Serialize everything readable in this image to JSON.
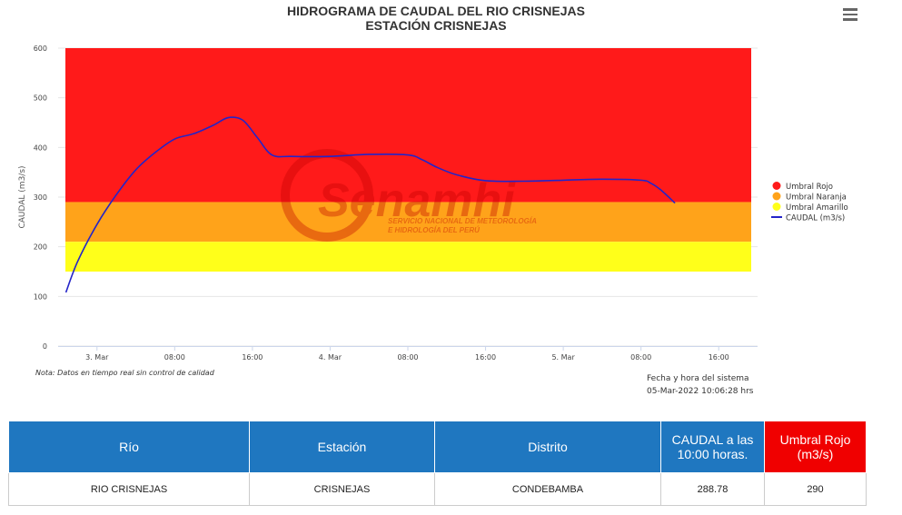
{
  "header": {
    "title_line1": "HIDROGRAMA DE CAUDAL DEL RIO CRISNEJAS",
    "title_line2": "ESTACIÓN CRISNEJAS",
    "menu_icon": "hamburger-menu-icon"
  },
  "chart_data": {
    "type": "line",
    "ylabel": "CAUDAL (m3/s)",
    "ylim": [
      0,
      600
    ],
    "yticks": [
      "0",
      "100",
      "200",
      "300",
      "400",
      "500",
      "600"
    ],
    "xlim_hours": [
      0,
      72
    ],
    "xticks": [
      {
        "t": 4,
        "label": "3. Mar"
      },
      {
        "t": 12,
        "label": "08:00"
      },
      {
        "t": 20,
        "label": "16:00"
      },
      {
        "t": 28,
        "label": "4. Mar"
      },
      {
        "t": 36,
        "label": "08:00"
      },
      {
        "t": 44,
        "label": "16:00"
      },
      {
        "t": 52,
        "label": "5. Mar"
      },
      {
        "t": 60,
        "label": "08:00"
      },
      {
        "t": 68,
        "label": "16:00"
      }
    ],
    "bands": [
      {
        "name": "Umbral Rojo",
        "from": 290,
        "to": 600,
        "color": "#ff1a1a"
      },
      {
        "name": "Umbral Naranja",
        "from": 210,
        "to": 290,
        "color": "#ffa31a"
      },
      {
        "name": "Umbral Amarillo",
        "from": 150,
        "to": 210,
        "color": "#ffff1a"
      }
    ],
    "series": [
      {
        "name": "CAUDAL (m3/s)",
        "color": "#2424c8",
        "x": [
          0.8,
          2.0,
          4.0,
          6.0,
          8.0,
          10.0,
          12.0,
          14.0,
          16.0,
          17.5,
          19.0,
          20.5,
          22.0,
          24.0,
          28.0,
          32.0,
          36.0,
          37.5,
          39.0,
          41.0,
          44.0,
          48.0,
          52.0,
          56.0,
          60.0,
          61.0,
          62.0,
          63.5
        ],
        "y": [
          108,
          170,
          245,
          305,
          355,
          390,
          417,
          428,
          445,
          460,
          455,
          420,
          385,
          382,
          382,
          386,
          385,
          375,
          360,
          345,
          333,
          332,
          334,
          336,
          334,
          328,
          315,
          288
        ]
      }
    ],
    "legend": {
      "position": "right"
    },
    "watermark": {
      "brand": "Senamhi",
      "line1": "SERVICIO NACIONAL DE METEOROLOGÍA",
      "line2": "E HIDROLOGÍA DEL PERÚ"
    }
  },
  "note": "Nota: Datos en tiempo real sin control de calidad",
  "system_time": {
    "label": "Fecha y hora del sistema",
    "value": "05-Mar-2022 10:06:28 hrs"
  },
  "table": {
    "headers": [
      "Río",
      "Estación",
      "Distrito",
      "CAUDAL a las 10:00 horas.",
      "Umbral Rojo (m3/s)"
    ],
    "row": [
      "RIO CRISNEJAS",
      "CRISNEJAS",
      "CONDEBAMBA",
      "288.78",
      "290"
    ]
  }
}
